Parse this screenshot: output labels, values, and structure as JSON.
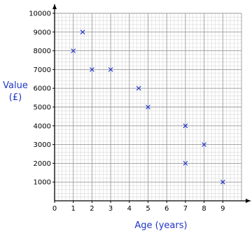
{
  "chart_data": {
    "type": "scatter",
    "title": "",
    "xlabel": "Age (years)",
    "ylabel_lines": [
      "Value",
      "(£)"
    ],
    "xlim": [
      0,
      10
    ],
    "ylim": [
      0,
      10000
    ],
    "x_ticks": [
      0,
      1,
      2,
      3,
      4,
      5,
      6,
      7,
      8,
      9
    ],
    "y_ticks": [
      1000,
      2000,
      3000,
      4000,
      5000,
      6000,
      7000,
      8000,
      9000,
      10000
    ],
    "grid": true,
    "marker": "x",
    "colors": {
      "marker": "#1f35c9",
      "axis_title": "#1f35c9",
      "grid_major": "#9b9b9b",
      "grid_minor": "#d8d8d8",
      "axes": "#000000"
    },
    "points": [
      {
        "x": 1.0,
        "y": 8000
      },
      {
        "x": 1.5,
        "y": 9000
      },
      {
        "x": 2.0,
        "y": 7000
      },
      {
        "x": 3.0,
        "y": 7000
      },
      {
        "x": 4.5,
        "y": 6000
      },
      {
        "x": 5.0,
        "y": 5000
      },
      {
        "x": 7.0,
        "y": 4000
      },
      {
        "x": 7.0,
        "y": 2000
      },
      {
        "x": 8.0,
        "y": 3000
      },
      {
        "x": 9.0,
        "y": 1000
      }
    ]
  }
}
